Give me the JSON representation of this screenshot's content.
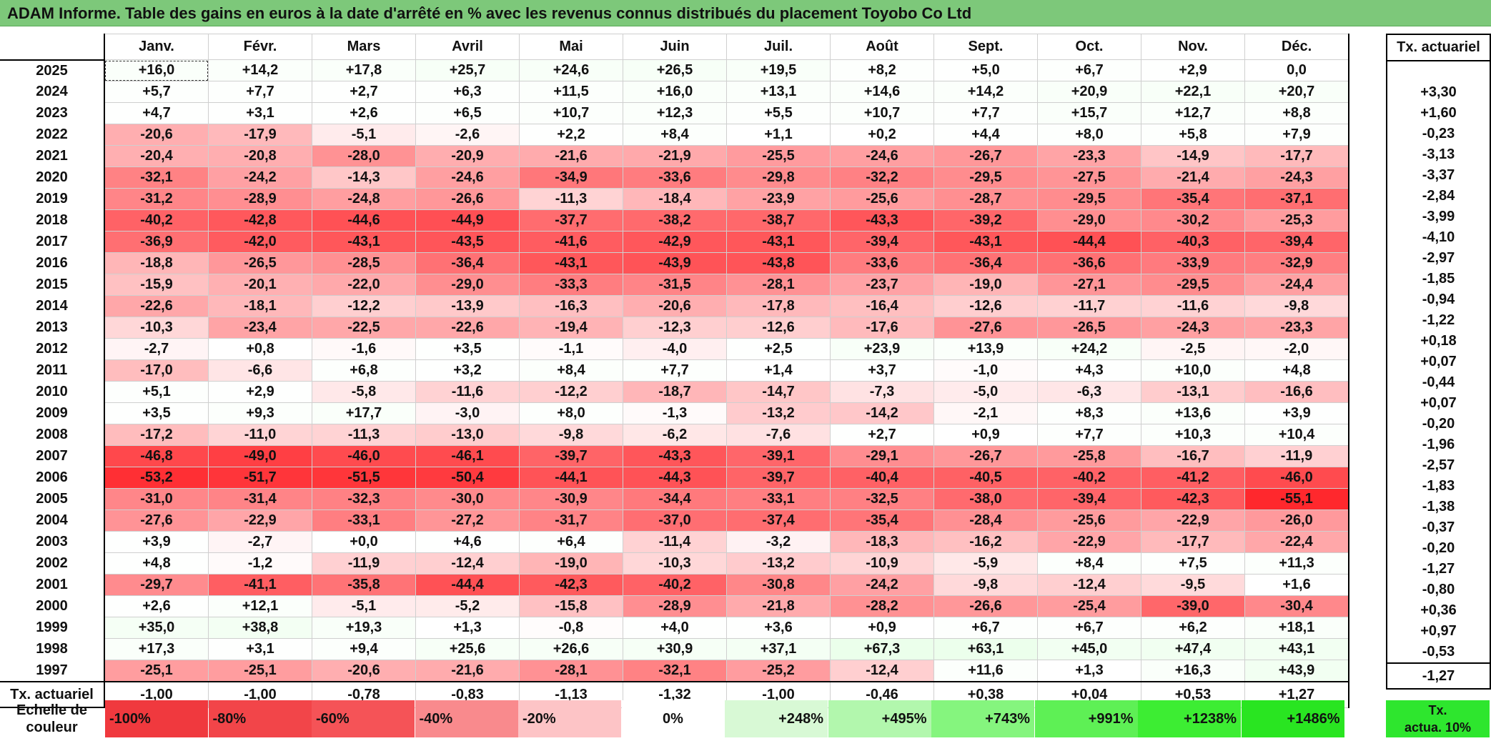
{
  "title": "ADAM Informe. Table des gains en euros à la date d'arrêté en % avec les revenus connus distribués du placement Toyobo Co Ltd",
  "chart_data": {
    "type": "table",
    "columns": [
      "Janv.",
      "Févr.",
      "Mars",
      "Avril",
      "Mai",
      "Juin",
      "Juil.",
      "Août",
      "Sept.",
      "Oct.",
      "Nov.",
      "Déc."
    ],
    "side_header": "Tx. actuariel",
    "rows": [
      {
        "year": "2025",
        "values": [
          "+16,0",
          "+14,2",
          "+17,8",
          "+25,7",
          "+24,6",
          "+26,5",
          "+19,5",
          "+8,2",
          "+5,0",
          "+6,7",
          "+2,9",
          "0,0"
        ],
        "tx": ""
      },
      {
        "year": "2024",
        "values": [
          "+5,7",
          "+7,7",
          "+2,7",
          "+6,3",
          "+11,5",
          "+16,0",
          "+13,1",
          "+14,6",
          "+14,2",
          "+20,9",
          "+22,1",
          "+20,7"
        ],
        "tx": "+3,30"
      },
      {
        "year": "2023",
        "values": [
          "+4,7",
          "+3,1",
          "+2,6",
          "+6,5",
          "+10,7",
          "+12,3",
          "+5,5",
          "+10,7",
          "+7,7",
          "+15,7",
          "+12,7",
          "+8,8"
        ],
        "tx": "+1,60"
      },
      {
        "year": "2022",
        "values": [
          "-20,6",
          "-17,9",
          "-5,1",
          "-2,6",
          "+2,2",
          "+8,4",
          "+1,1",
          "+0,2",
          "+4,4",
          "+8,0",
          "+5,8",
          "+7,9"
        ],
        "tx": "-0,23"
      },
      {
        "year": "2021",
        "values": [
          "-20,4",
          "-20,8",
          "-28,0",
          "-20,9",
          "-21,6",
          "-21,9",
          "-25,5",
          "-24,6",
          "-26,7",
          "-23,3",
          "-14,9",
          "-17,7"
        ],
        "tx": "-3,13"
      },
      {
        "year": "2020",
        "values": [
          "-32,1",
          "-24,2",
          "-14,3",
          "-24,6",
          "-34,9",
          "-33,6",
          "-29,8",
          "-32,2",
          "-29,5",
          "-27,5",
          "-21,4",
          "-24,3"
        ],
        "tx": "-3,37"
      },
      {
        "year": "2019",
        "values": [
          "-31,2",
          "-28,9",
          "-24,8",
          "-26,6",
          "-11,3",
          "-18,4",
          "-23,9",
          "-25,6",
          "-28,7",
          "-29,5",
          "-35,4",
          "-37,1"
        ],
        "tx": "-2,84"
      },
      {
        "year": "2018",
        "values": [
          "-40,2",
          "-42,8",
          "-44,6",
          "-44,9",
          "-37,7",
          "-38,2",
          "-38,7",
          "-43,3",
          "-39,2",
          "-29,0",
          "-30,2",
          "-25,3"
        ],
        "tx": "-3,99"
      },
      {
        "year": "2017",
        "values": [
          "-36,9",
          "-42,0",
          "-43,1",
          "-43,5",
          "-41,6",
          "-42,9",
          "-43,1",
          "-39,4",
          "-43,1",
          "-44,4",
          "-40,3",
          "-39,4"
        ],
        "tx": "-4,10"
      },
      {
        "year": "2016",
        "values": [
          "-18,8",
          "-26,5",
          "-28,5",
          "-36,4",
          "-43,1",
          "-43,9",
          "-43,8",
          "-33,6",
          "-36,4",
          "-36,6",
          "-33,9",
          "-32,9"
        ],
        "tx": "-2,97"
      },
      {
        "year": "2015",
        "values": [
          "-15,9",
          "-20,1",
          "-22,0",
          "-29,0",
          "-33,3",
          "-31,5",
          "-28,1",
          "-23,7",
          "-19,0",
          "-27,1",
          "-29,5",
          "-24,4"
        ],
        "tx": "-1,85"
      },
      {
        "year": "2014",
        "values": [
          "-22,6",
          "-18,1",
          "-12,2",
          "-13,9",
          "-16,3",
          "-20,6",
          "-17,8",
          "-16,4",
          "-12,6",
          "-11,7",
          "-11,6",
          "-9,8"
        ],
        "tx": "-0,94"
      },
      {
        "year": "2013",
        "values": [
          "-10,3",
          "-23,4",
          "-22,5",
          "-22,6",
          "-19,4",
          "-12,3",
          "-12,6",
          "-17,6",
          "-27,6",
          "-26,5",
          "-24,3",
          "-23,3"
        ],
        "tx": "-1,22"
      },
      {
        "year": "2012",
        "values": [
          "-2,7",
          "+0,8",
          "-1,6",
          "+3,5",
          "-1,1",
          "-4,0",
          "+2,5",
          "+23,9",
          "+13,9",
          "+24,2",
          "-2,5",
          "-2,0"
        ],
        "tx": "+0,18"
      },
      {
        "year": "2011",
        "values": [
          "-17,0",
          "-6,6",
          "+6,8",
          "+3,2",
          "+8,4",
          "+7,7",
          "+1,4",
          "+3,7",
          "-1,0",
          "+4,3",
          "+10,0",
          "+4,8"
        ],
        "tx": "+0,07"
      },
      {
        "year": "2010",
        "values": [
          "+5,1",
          "+2,9",
          "-5,8",
          "-11,6",
          "-12,2",
          "-18,7",
          "-14,7",
          "-7,3",
          "-5,0",
          "-6,3",
          "-13,1",
          "-16,6"
        ],
        "tx": "-0,44"
      },
      {
        "year": "2009",
        "values": [
          "+3,5",
          "+9,3",
          "+17,7",
          "-3,0",
          "+8,0",
          "-1,3",
          "-13,2",
          "-14,2",
          "-2,1",
          "+8,3",
          "+13,6",
          "+3,9"
        ],
        "tx": "+0,07"
      },
      {
        "year": "2008",
        "values": [
          "-17,2",
          "-11,0",
          "-11,3",
          "-13,0",
          "-9,8",
          "-6,2",
          "-7,6",
          "+2,7",
          "+0,9",
          "+7,7",
          "+10,3",
          "+10,4"
        ],
        "tx": "-0,20"
      },
      {
        "year": "2007",
        "values": [
          "-46,8",
          "-49,0",
          "-46,0",
          "-46,1",
          "-39,7",
          "-43,3",
          "-39,1",
          "-29,1",
          "-26,7",
          "-25,8",
          "-16,7",
          "-11,9"
        ],
        "tx": "-1,96"
      },
      {
        "year": "2006",
        "values": [
          "-53,2",
          "-51,7",
          "-51,5",
          "-50,4",
          "-44,1",
          "-44,3",
          "-39,7",
          "-40,4",
          "-40,5",
          "-40,2",
          "-41,2",
          "-46,0"
        ],
        "tx": "-2,57"
      },
      {
        "year": "2005",
        "values": [
          "-31,0",
          "-31,4",
          "-32,3",
          "-30,0",
          "-30,9",
          "-34,4",
          "-33,1",
          "-32,5",
          "-38,0",
          "-39,4",
          "-42,3",
          "-55,1"
        ],
        "tx": "-1,83"
      },
      {
        "year": "2004",
        "values": [
          "-27,6",
          "-22,9",
          "-33,1",
          "-27,2",
          "-31,7",
          "-37,0",
          "-37,4",
          "-35,4",
          "-28,4",
          "-25,6",
          "-22,9",
          "-26,0"
        ],
        "tx": "-1,38"
      },
      {
        "year": "2003",
        "values": [
          "+3,9",
          "-2,7",
          "+0,0",
          "+4,6",
          "+6,4",
          "-11,4",
          "-3,2",
          "-18,3",
          "-16,2",
          "-22,9",
          "-17,7",
          "-22,4"
        ],
        "tx": "-0,37"
      },
      {
        "year": "2002",
        "values": [
          "+4,8",
          "-1,2",
          "-11,9",
          "-12,4",
          "-19,0",
          "-10,3",
          "-13,2",
          "-10,9",
          "-5,9",
          "+8,4",
          "+7,5",
          "+11,3"
        ],
        "tx": "-0,20"
      },
      {
        "year": "2001",
        "values": [
          "-29,7",
          "-41,1",
          "-35,8",
          "-44,4",
          "-42,3",
          "-40,2",
          "-30,8",
          "-24,2",
          "-9,8",
          "-12,4",
          "-9,5",
          "+1,6"
        ],
        "tx": "-1,27"
      },
      {
        "year": "2000",
        "values": [
          "+2,6",
          "+12,1",
          "-5,1",
          "-5,2",
          "-15,8",
          "-28,9",
          "-21,8",
          "-28,2",
          "-26,6",
          "-25,4",
          "-39,0",
          "-30,4"
        ],
        "tx": "-0,80"
      },
      {
        "year": "1999",
        "values": [
          "+35,0",
          "+38,8",
          "+19,3",
          "+1,3",
          "-0,8",
          "+4,0",
          "+3,6",
          "+0,9",
          "+6,7",
          "+6,7",
          "+6,2",
          "+18,1"
        ],
        "tx": "+0,36"
      },
      {
        "year": "1998",
        "values": [
          "+17,3",
          "+3,1",
          "+9,4",
          "+25,6",
          "+26,6",
          "+30,9",
          "+37,1",
          "+67,3",
          "+63,1",
          "+45,0",
          "+47,4",
          "+43,1"
        ],
        "tx": "+0,97"
      },
      {
        "year": "1997",
        "values": [
          "-25,1",
          "-25,1",
          "-20,6",
          "-21,6",
          "-28,1",
          "-32,1",
          "-25,2",
          "-12,4",
          "+11,6",
          "+1,3",
          "+16,3",
          "+43,9"
        ],
        "tx": "-0,53"
      }
    ],
    "footer": {
      "label": "Tx. actuariel",
      "values": [
        "-1,00",
        "-1,00",
        "-0,78",
        "-0,83",
        "-1,13",
        "-1,32",
        "-1,00",
        "-0,46",
        "+0,38",
        "+0,04",
        "+0,53",
        "+1,27"
      ],
      "tx": "-1,27"
    }
  },
  "legend": {
    "label_line1": "Echelle de",
    "label_line2": "couleur",
    "items": [
      {
        "label": "-100%",
        "color": "#f0393e"
      },
      {
        "label": "-80%",
        "color": "#f24549"
      },
      {
        "label": "-60%",
        "color": "#f55357"
      },
      {
        "label": "-40%",
        "color": "#f98a8d"
      },
      {
        "label": "-20%",
        "color": "#fdc4c6"
      },
      {
        "label": "0%",
        "color": "#ffffff"
      },
      {
        "label": "+248%",
        "color": "#d8f9d5"
      },
      {
        "label": "+495%",
        "color": "#b2f7ad"
      },
      {
        "label": "+743%",
        "color": "#85f57e"
      },
      {
        "label": "+991%",
        "color": "#5ef055"
      },
      {
        "label": "+1238%",
        "color": "#3ded33"
      },
      {
        "label": "+1486%",
        "color": "#29e521"
      }
    ],
    "tx10_line1": "Tx.",
    "tx10_line2": "actua. 10%",
    "tx10_color": "#2ee62e"
  }
}
